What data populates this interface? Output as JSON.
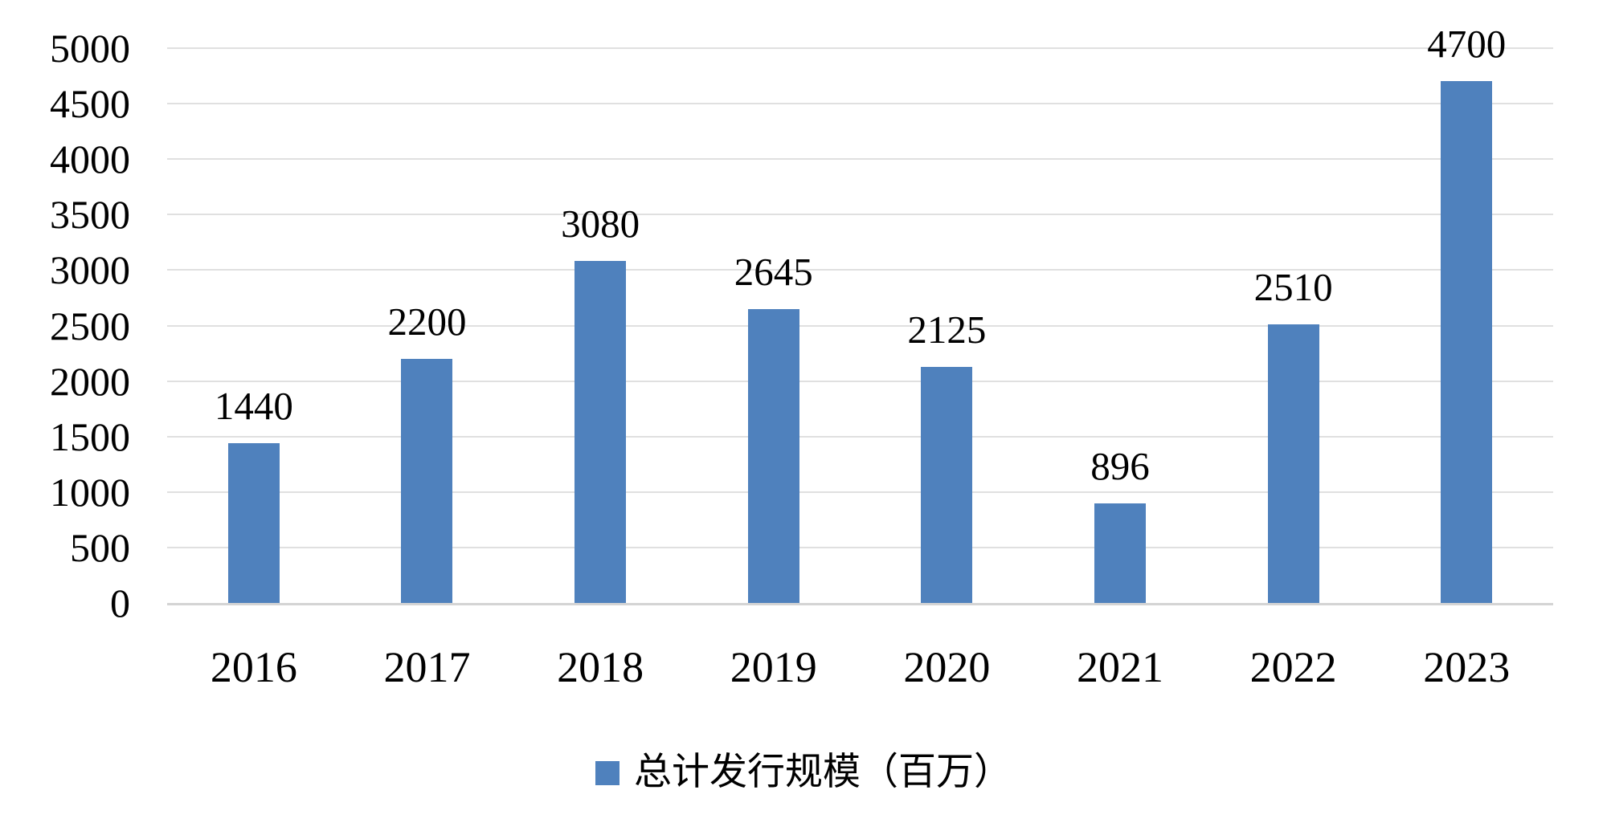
{
  "chart_data": {
    "type": "bar",
    "categories": [
      "2016",
      "2017",
      "2018",
      "2019",
      "2020",
      "2021",
      "2022",
      "2023"
    ],
    "series": [
      {
        "name": "总计发行规模（百万）",
        "values": [
          1440,
          2200,
          3080,
          2645,
          2125,
          896,
          2510,
          4700
        ]
      }
    ],
    "xlabel": "",
    "ylabel": "",
    "ylim": [
      0,
      5000
    ],
    "ytick_step": 500,
    "yticks": [
      0,
      500,
      1000,
      1500,
      2000,
      2500,
      3000,
      3500,
      4000,
      4500,
      5000
    ],
    "grid": true,
    "data_labels": true,
    "legend_position": "bottom",
    "colors": {
      "bar": "#4F81BD",
      "gridline": "#E0E0E0",
      "axis_line": "#D4D4D4",
      "text": "#000000",
      "background": "#FFFFFF"
    }
  }
}
